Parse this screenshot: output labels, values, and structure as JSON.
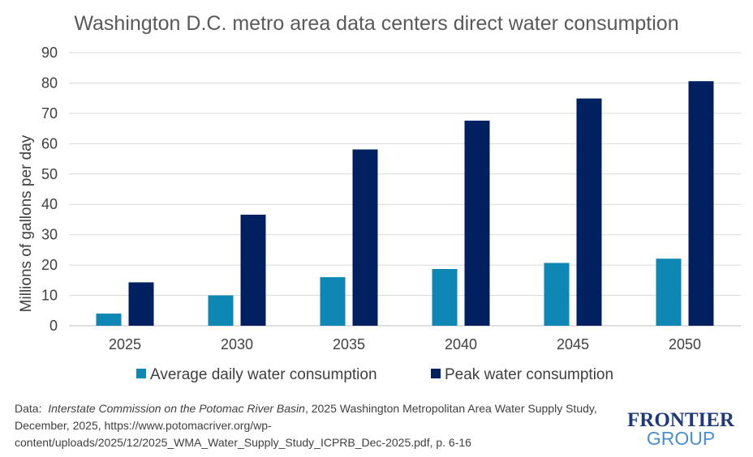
{
  "chart_data": {
    "type": "bar",
    "title": "Washington D.C. metro area data centers direct water consumption",
    "xlabel": "",
    "ylabel": "Millions of gallons per day",
    "categories": [
      "2025",
      "2030",
      "2035",
      "2040",
      "2045",
      "2050"
    ],
    "series": [
      {
        "name": "Average daily water consumption",
        "color": "#0E87B4",
        "values": [
          4,
          10,
          16,
          18.7,
          20.7,
          22.1
        ]
      },
      {
        "name": "Peak water consumption",
        "color": "#002060",
        "values": [
          14.3,
          36.6,
          58.1,
          67.6,
          74.9,
          80.6
        ]
      }
    ],
    "ylim": [
      0,
      90
    ],
    "yticks": [
      "0",
      "10",
      "20",
      "30",
      "40",
      "50",
      "60",
      "70",
      "80",
      "90"
    ],
    "grid": true,
    "legend": "bottom"
  },
  "source": {
    "prefix": "Data:",
    "italic": "Interstate Commission on the Potomac River Basin",
    "rest": ", 2025 Washington Metropolitan Area Water Supply Study, December, 2025, https://www.potomacriver.org/wp-content/uploads/2025/12/2025_WMA_Water_Supply_Study_ICPRB_Dec-2025.pdf, p. 6-16"
  },
  "logo": {
    "line1": "FRONTIER",
    "line2": "GROUP",
    "color1": "#1F3A7A",
    "color2": "#4A8FCF"
  }
}
